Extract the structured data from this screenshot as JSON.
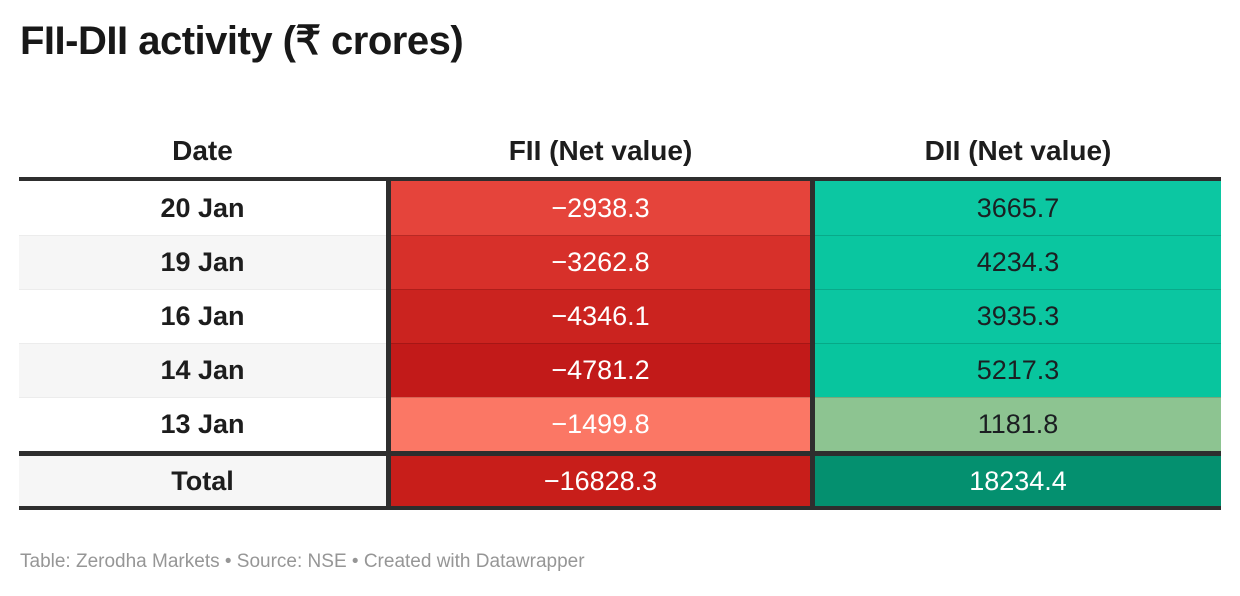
{
  "title": "FII-DII activity (₹ crores)",
  "footer": "Table: Zerodha Markets • Source: NSE • Created with Datawrapper",
  "colors": {
    "frame_border": "#2e2e2e",
    "row_alt_bg": "#f6f6f6",
    "negative_scale_dark": "#c21a19",
    "negative_scale_light": "#fb7765",
    "positive_scale_dark": "#04906f",
    "positive_scale_light": "#8dc491"
  },
  "table": {
    "columns": [
      "Date",
      "FII (Net value)",
      "DII (Net value)"
    ],
    "rows": [
      {
        "date": "20 Jan",
        "fii": "−2938.3",
        "dii": "3665.7",
        "date_bg": "#ffffff",
        "fii_bg": "#e5443b",
        "fii_fg": "#ffffff",
        "dii_bg": "#0cc7a2",
        "dii_fg": "#1b1f22"
      },
      {
        "date": "19 Jan",
        "fii": "−3262.8",
        "dii": "4234.3",
        "date_bg": "#f6f6f6",
        "fii_bg": "#d7302a",
        "fii_fg": "#ffffff",
        "dii_bg": "#0ac6a0",
        "dii_fg": "#1b1f22"
      },
      {
        "date": "16 Jan",
        "fii": "−4346.1",
        "dii": "3935.3",
        "date_bg": "#ffffff",
        "fii_bg": "#cb231f",
        "fii_fg": "#ffffff",
        "dii_bg": "#0bc6a1",
        "dii_fg": "#1b1f22"
      },
      {
        "date": "14 Jan",
        "fii": "−4781.2",
        "dii": "5217.3",
        "date_bg": "#f6f6f6",
        "fii_bg": "#c21a19",
        "fii_fg": "#ffffff",
        "dii_bg": "#08c59e",
        "dii_fg": "#1b1f22"
      },
      {
        "date": "13 Jan",
        "fii": "−1499.8",
        "dii": "1181.8",
        "date_bg": "#ffffff",
        "fii_bg": "#fb7765",
        "fii_fg": "#ffffff",
        "dii_bg": "#8dc491",
        "dii_fg": "#1b1f22"
      }
    ],
    "total_row": {
      "label": "Total",
      "fii": "−16828.3",
      "dii": "18234.4",
      "date_bg": "#f6f6f6",
      "fii_bg": "#c81e1a",
      "fii_fg": "#ffffff",
      "dii_bg": "#04906f",
      "dii_fg": "#ffffff"
    }
  },
  "chart_data": {
    "type": "table",
    "title": "FII-DII activity (₹ crores)",
    "columns": [
      "Date",
      "FII (Net value)",
      "DII (Net value)"
    ],
    "dates": [
      "20 Jan",
      "19 Jan",
      "16 Jan",
      "14 Jan",
      "13 Jan"
    ],
    "series": [
      {
        "name": "FII (Net value)",
        "values": [
          -2938.3,
          -3262.8,
          -4346.1,
          -4781.2,
          -1499.8
        ],
        "total": -16828.3
      },
      {
        "name": "DII (Net value)",
        "values": [
          3665.7,
          4234.3,
          3935.3,
          5217.3,
          1181.8
        ],
        "total": 18234.4
      }
    ],
    "heatmap": true,
    "source": "NSE",
    "byline": "Zerodha Markets",
    "tool": "Datawrapper"
  }
}
